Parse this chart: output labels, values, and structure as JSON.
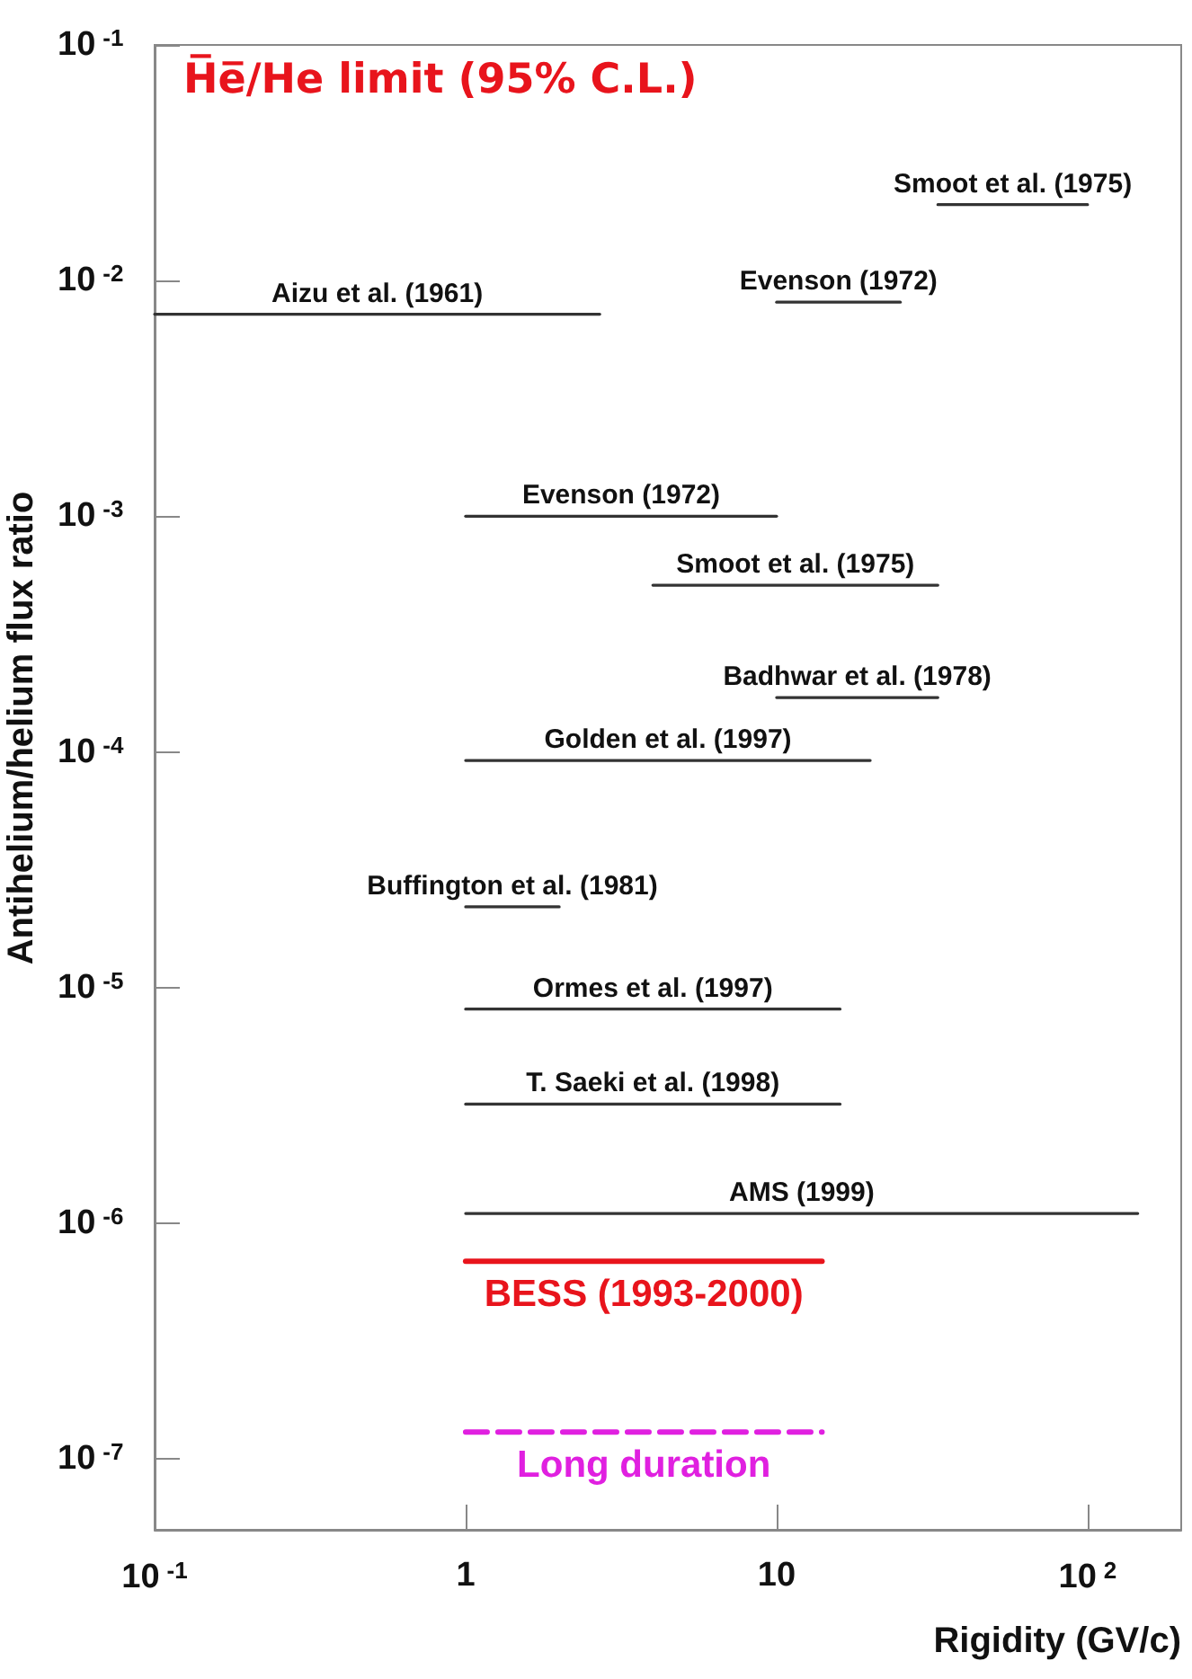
{
  "chart_data": {
    "type": "line",
    "title": "H̅e̅/He limit (95% C.L.)",
    "xlabel": "Rigidity (GV/c)",
    "ylabel": "Antihelium/helium flux ratio",
    "log": "xy",
    "grid": false,
    "legend": false,
    "marker": "none",
    "xlim": [
      0.1,
      200
    ],
    "ylim": [
      5e-08,
      0.1
    ],
    "xticks": [
      {
        "value": 0.1,
        "label": "10$^{-1}$"
      },
      1,
      10,
      {
        "value": 100,
        "label": "10$^{2}$"
      }
    ],
    "yticks": [
      {
        "value": 1e-07,
        "label": "10$^{-7}$"
      },
      {
        "value": 1e-06,
        "label": "10$^{-6}$"
      },
      {
        "value": 1e-05,
        "label": "10$^{-5}$"
      },
      {
        "value": 0.0001,
        "label": "10$^{-4}$"
      },
      {
        "value": 0.001,
        "label": "10$^{-3}$"
      },
      {
        "value": 0.01,
        "label": "10$^{-2}$"
      },
      {
        "value": 0.1,
        "label": "10$^{-1}$"
      }
    ],
    "series": [
      {
        "name": "Smoot et al. (1975)",
        "color": "#333333",
        "x": [
          33,
          100
        ],
        "values": [
          0.021,
          0.021
        ]
      },
      {
        "name": "Aizu et al. (1961)",
        "color": "#333333",
        "x": [
          0.1,
          2.7
        ],
        "values": [
          0.0072,
          0.0072
        ]
      },
      {
        "name": "Evenson (1972)",
        "color": "#333333",
        "x": [
          10,
          25
        ],
        "values": [
          0.0081,
          0.0081
        ]
      },
      {
        "name": "Evenson (1972)",
        "color": "#333333",
        "x": [
          1,
          10
        ],
        "values": [
          0.001,
          0.001
        ]
      },
      {
        "name": "Smoot et al. (1975)",
        "color": "#333333",
        "x": [
          4,
          33
        ],
        "values": [
          0.00051,
          0.00051
        ]
      },
      {
        "name": "Badhwar et al. (1978)",
        "color": "#333333",
        "x": [
          10,
          33
        ],
        "values": [
          0.00017,
          0.00017
        ]
      },
      {
        "name": "Golden et al. (1997)",
        "color": "#333333",
        "x": [
          1,
          20
        ],
        "values": [
          9.2e-05,
          9.2e-05
        ]
      },
      {
        "name": "Buffington et al. (1981)",
        "color": "#333333",
        "x": [
          1,
          2
        ],
        "values": [
          2.2e-05,
          2.2e-05
        ]
      },
      {
        "name": "Ormes et al. (1997)",
        "color": "#333333",
        "x": [
          1,
          16
        ],
        "values": [
          8.1e-06,
          8.1e-06
        ]
      },
      {
        "name": "T. Saeki et al. (1998)",
        "color": "#333333",
        "x": [
          1,
          16
        ],
        "values": [
          3.2e-06,
          3.2e-06
        ]
      },
      {
        "name": "AMS (1999)",
        "color": "#333333",
        "x": [
          1,
          145
        ],
        "values": [
          1.1e-06,
          1.1e-06
        ]
      },
      {
        "name": "BESS (1993-2000)",
        "color": "#e8141c",
        "x": [
          1,
          14
        ],
        "values": [
          6.9e-07,
          6.9e-07
        ]
      },
      {
        "name": "Long duration",
        "color": "#e020e0",
        "x": [
          1,
          14
        ],
        "values": [
          1.3e-07,
          1.3e-07
        ],
        "line_style": "dashed"
      }
    ]
  }
}
